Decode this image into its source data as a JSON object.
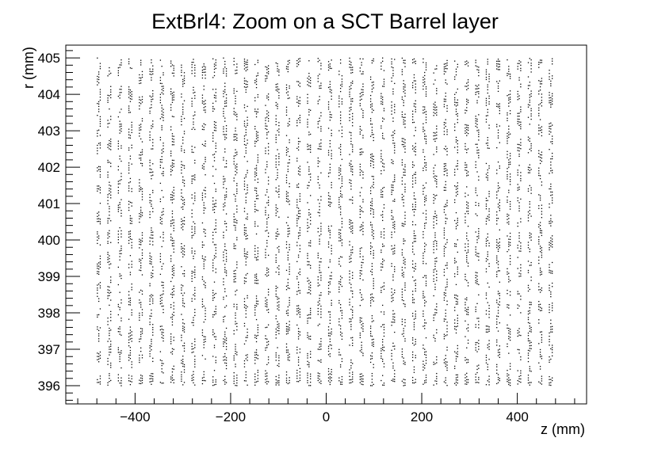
{
  "chart_data": {
    "type": "scatter",
    "title": "ExtBrl4: Zoom on a SCT Barrel layer",
    "xlabel": "z (mm)",
    "ylabel": "r (mm)",
    "xlim": [
      -545,
      545
    ],
    "ylim": [
      395.5,
      405.35
    ],
    "xticks": [
      -400,
      -200,
      0,
      200,
      400
    ],
    "yticks": [
      396,
      397,
      398,
      399,
      400,
      401,
      402,
      403,
      404,
      405
    ],
    "grid": false,
    "legend": "none",
    "marker_color": "#000000",
    "series": [
      {
        "column_z": [
          -476,
          -454,
          -432,
          -410,
          -388,
          -366,
          -344,
          -322,
          -300,
          -278,
          -256,
          -234,
          -212,
          -190,
          -168,
          -146,
          -124,
          -102,
          -80,
          -58,
          -36,
          -14,
          8,
          30,
          52,
          74,
          96,
          118,
          140,
          162,
          184,
          206,
          228,
          250,
          272,
          294,
          316,
          338,
          360,
          382,
          404,
          426,
          448,
          470
        ],
        "r_range": [
          396.0,
          405.0
        ]
      }
    ]
  }
}
